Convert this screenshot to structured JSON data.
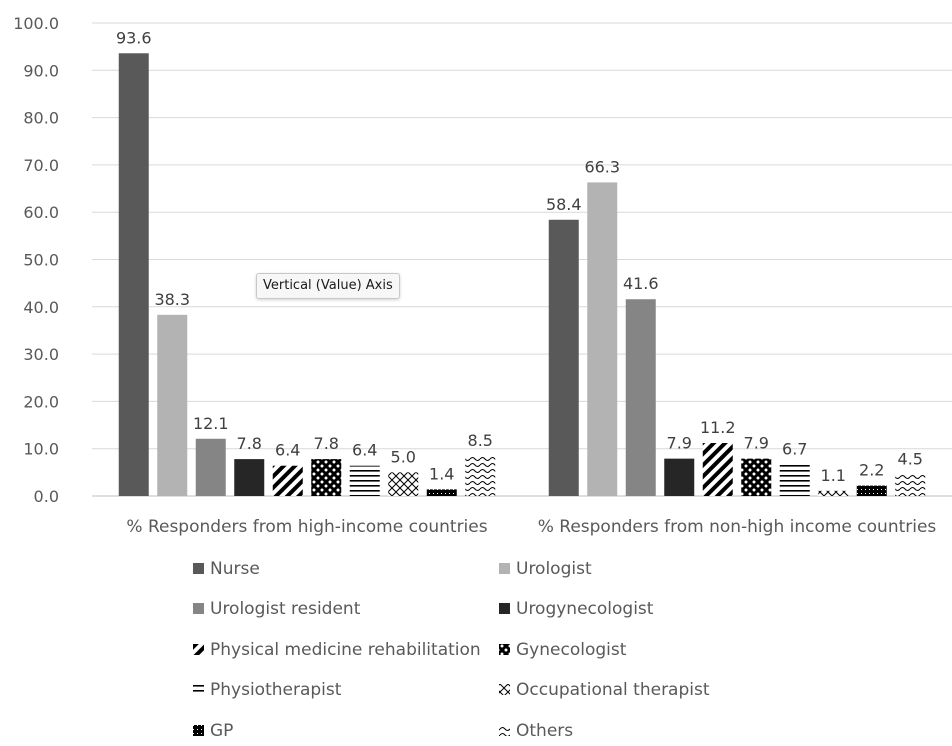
{
  "chart_data": {
    "type": "bar",
    "categories": [
      "% Responders from high-income countries",
      "% Responders from non-high income countries"
    ],
    "series": [
      {
        "name": "Nurse",
        "values": [
          93.6,
          58.4
        ],
        "color": "#595959",
        "pattern": "solid"
      },
      {
        "name": "Urologist",
        "values": [
          38.3,
          66.3
        ],
        "color": "#b3b3b3",
        "pattern": "solid"
      },
      {
        "name": "Urologist resident",
        "values": [
          12.1,
          41.6
        ],
        "color": "#858585",
        "pattern": "solid"
      },
      {
        "name": "Urogynecologist",
        "values": [
          7.8,
          7.9
        ],
        "color": "#262626",
        "pattern": "solid"
      },
      {
        "name": "Physical medicine rehabilitation",
        "values": [
          6.4,
          11.2
        ],
        "color": "#000000",
        "pattern": "diagonal"
      },
      {
        "name": "Gynecologist",
        "values": [
          7.8,
          7.9
        ],
        "color": "#000000",
        "pattern": "checker"
      },
      {
        "name": "Physiotherapist",
        "values": [
          6.4,
          6.7
        ],
        "color": "#000000",
        "pattern": "horizontal"
      },
      {
        "name": "Occupational therapist",
        "values": [
          5.0,
          1.1
        ],
        "color": "#000000",
        "pattern": "diamond"
      },
      {
        "name": "GP",
        "values": [
          1.4,
          2.2
        ],
        "color": "#000000",
        "pattern": "dense"
      },
      {
        "name": "Others",
        "values": [
          8.5,
          4.5
        ],
        "color": "#000000",
        "pattern": "wave"
      }
    ],
    "data_labels": [
      [
        "93.6",
        "58.4"
      ],
      [
        "38.3",
        "66.3"
      ],
      [
        "12.1",
        "41.6"
      ],
      [
        "7.8",
        "7.9"
      ],
      [
        "6.4",
        "11.2"
      ],
      [
        "7.8",
        "7.9"
      ],
      [
        "6.4",
        "6.7"
      ],
      [
        "5.0",
        "1.1"
      ],
      [
        "1.4",
        "2.2"
      ],
      [
        "8.5",
        "4.5"
      ]
    ],
    "yticks": [
      "0.0",
      "10.0",
      "20.0",
      "30.0",
      "40.0",
      "50.0",
      "60.0",
      "70.0",
      "80.0",
      "90.0",
      "100.0"
    ],
    "ylim": [
      0,
      100
    ],
    "grid": true,
    "legend_position": "bottom",
    "tooltip": "Vertical (Value) Axis"
  }
}
